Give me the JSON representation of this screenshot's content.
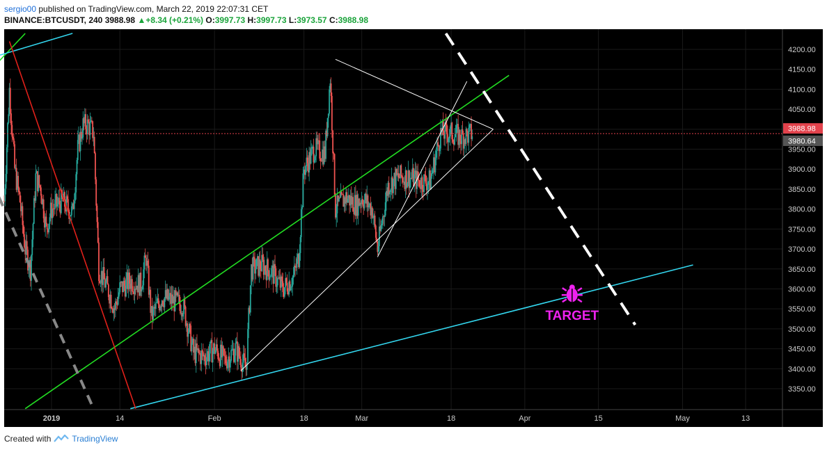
{
  "header": {
    "user": "sergio00",
    "published_text": "published on TradingView.com, March 22, 2019 22:07:31 CET",
    "symbol": "BINANCE:BTCUSDT, 240",
    "last": "3988.98",
    "change": "+8.34 (+0.21%)",
    "o_label": "O:",
    "o": "3997.73",
    "h_label": "H:",
    "h": "3997.73",
    "l_label": "L:",
    "l": "3973.57",
    "c_label": "C:",
    "c": "3988.98"
  },
  "footer": {
    "created_with": "Created with",
    "brand": "TradingView"
  },
  "colors": {
    "background": "#000000",
    "up": "#26a69a",
    "down": "#ef5350",
    "green_line": "#22dd22",
    "cyan_line": "#33d6ee",
    "red_line": "#e0201a",
    "target": "#ee22ee",
    "price_tag_last": "#e2424c",
    "price_tag_other": "#555555"
  },
  "chart_data": {
    "type": "candlestick",
    "symbol": "BINANCE:BTCUSDT",
    "interval": "240",
    "y_axis": {
      "min": 3300,
      "max": 4220,
      "ticks": [
        3350,
        3400,
        3450,
        3500,
        3550,
        3600,
        3650,
        3700,
        3750,
        3800,
        3850,
        3900,
        3950,
        4000,
        4050,
        4100,
        4150,
        4200
      ],
      "tick_labels": [
        "3350.00",
        "3400.00",
        "3450.00",
        "3500.00",
        "3550.00",
        "3600.00",
        "3650.00",
        "3700.00",
        "3750.00",
        "3800.00",
        "3850.00",
        "3900.00",
        "3950.00",
        "4000.00",
        "4050.00",
        "4100.00",
        "4150.00",
        "4200.00"
      ]
    },
    "x_axis": {
      "start": "2018-12-23",
      "end": "2019-05-20",
      "ticks": [
        "2019-01-01",
        "2019-01-14",
        "2019-02-01",
        "2019-02-18",
        "2019-03-01",
        "2019-03-18",
        "2019-04-01",
        "2019-04-15",
        "2019-05-01",
        "2019-05-13"
      ],
      "tick_labels": [
        "2019",
        "14",
        "Feb",
        "18",
        "Mar",
        "18",
        "Apr",
        "15",
        "May",
        "13"
      ]
    },
    "price_tags": [
      {
        "value": 3988.98,
        "label": "3988.98"
      },
      {
        "value": 3980.64,
        "label": "3980.64"
      }
    ],
    "price_path": [
      [
        "2018-12-23",
        3820
      ],
      [
        "2018-12-24",
        4100
      ],
      [
        "2018-12-25",
        3900
      ],
      [
        "2018-12-26",
        3820
      ],
      [
        "2018-12-27",
        3700
      ],
      [
        "2018-12-28",
        3650
      ],
      [
        "2018-12-29",
        3880
      ],
      [
        "2018-12-30",
        3850
      ],
      [
        "2018-12-31",
        3750
      ],
      [
        "2019-01-01",
        3800
      ],
      [
        "2019-01-03",
        3820
      ],
      [
        "2019-01-05",
        3790
      ],
      [
        "2019-01-06",
        3950
      ],
      [
        "2019-01-07",
        4010
      ],
      [
        "2019-01-08",
        4010
      ],
      [
        "2019-01-09",
        3990
      ],
      [
        "2019-01-10",
        3650
      ],
      [
        "2019-01-11",
        3620
      ],
      [
        "2019-01-12",
        3590
      ],
      [
        "2019-01-13",
        3550
      ],
      [
        "2019-01-14",
        3600
      ],
      [
        "2019-01-16",
        3620
      ],
      [
        "2019-01-18",
        3610
      ],
      [
        "2019-01-19",
        3680
      ],
      [
        "2019-01-20",
        3530
      ],
      [
        "2019-01-22",
        3580
      ],
      [
        "2019-01-24",
        3570
      ],
      [
        "2019-01-26",
        3560
      ],
      [
        "2019-01-28",
        3440
      ],
      [
        "2019-01-30",
        3430
      ],
      [
        "2019-02-01",
        3450
      ],
      [
        "2019-02-03",
        3420
      ],
      [
        "2019-02-05",
        3450
      ],
      [
        "2019-02-07",
        3400
      ],
      [
        "2019-02-08",
        3650
      ],
      [
        "2019-02-10",
        3660
      ],
      [
        "2019-02-12",
        3640
      ],
      [
        "2019-02-14",
        3600
      ],
      [
        "2019-02-16",
        3630
      ],
      [
        "2019-02-17",
        3680
      ],
      [
        "2019-02-18",
        3900
      ],
      [
        "2019-02-20",
        3950
      ],
      [
        "2019-02-22",
        3940
      ],
      [
        "2019-02-23",
        4130
      ],
      [
        "2019-02-24",
        3800
      ],
      [
        "2019-02-26",
        3830
      ],
      [
        "2019-02-28",
        3810
      ],
      [
        "2019-03-01",
        3830
      ],
      [
        "2019-03-03",
        3800
      ],
      [
        "2019-03-04",
        3700
      ],
      [
        "2019-03-06",
        3860
      ],
      [
        "2019-03-08",
        3880
      ],
      [
        "2019-03-10",
        3880
      ],
      [
        "2019-03-12",
        3870
      ],
      [
        "2019-03-14",
        3870
      ],
      [
        "2019-03-16",
        3990
      ],
      [
        "2019-03-18",
        3990
      ],
      [
        "2019-03-20",
        3980
      ],
      [
        "2019-03-22",
        3989
      ]
    ],
    "drawings": [
      {
        "name": "green-channel-line",
        "color": "#22dd22",
        "points": [
          [
            "2018-12-27",
            3300
          ],
          [
            "2019-03-29",
            4135
          ]
        ]
      },
      {
        "name": "green-channel-line-top",
        "color": "#22dd22",
        "points": [
          [
            "2018-12-22",
            4170
          ],
          [
            "2018-12-27",
            4240
          ]
        ]
      },
      {
        "name": "cyan-support-line",
        "color": "#33d6ee",
        "points": [
          [
            "2019-01-16",
            3300
          ],
          [
            "2019-05-03",
            3660
          ]
        ]
      },
      {
        "name": "cyan-top-line",
        "color": "#33d6ee",
        "points": [
          [
            "2018-12-22",
            4185
          ],
          [
            "2019-01-05",
            4240
          ]
        ]
      },
      {
        "name": "red-down-line",
        "color": "#e0201a",
        "points": [
          [
            "2018-12-24",
            4220
          ],
          [
            "2019-01-17",
            3300
          ]
        ]
      },
      {
        "name": "white-triangle-upper",
        "color": "#ffffff",
        "points": [
          [
            "2019-02-24",
            4175
          ],
          [
            "2019-03-26",
            4000
          ]
        ]
      },
      {
        "name": "white-triangle-lower",
        "color": "#ffffff",
        "points": [
          [
            "2019-02-06",
            3395
          ],
          [
            "2019-03-26",
            4000
          ]
        ]
      },
      {
        "name": "white-wedge-line",
        "color": "#ffffff",
        "points": [
          [
            "2019-03-04",
            3680
          ],
          [
            "2019-03-21",
            4120
          ]
        ]
      },
      {
        "name": "dashed-white-line",
        "color": "#ffffff",
        "dashed": true,
        "points": [
          [
            "2019-03-17",
            4240
          ],
          [
            "2019-04-22",
            3510
          ]
        ]
      },
      {
        "name": "dashed-gray-line",
        "color": "#888888",
        "dashed": true,
        "points": [
          [
            "2018-12-22",
            3830
          ],
          [
            "2019-01-09",
            3300
          ]
        ]
      }
    ],
    "annotations": [
      {
        "text": "TARGET",
        "color": "#ee22ee",
        "point": [
          "2019-04-10",
          3590
        ],
        "icon": "bug-icon"
      }
    ]
  }
}
